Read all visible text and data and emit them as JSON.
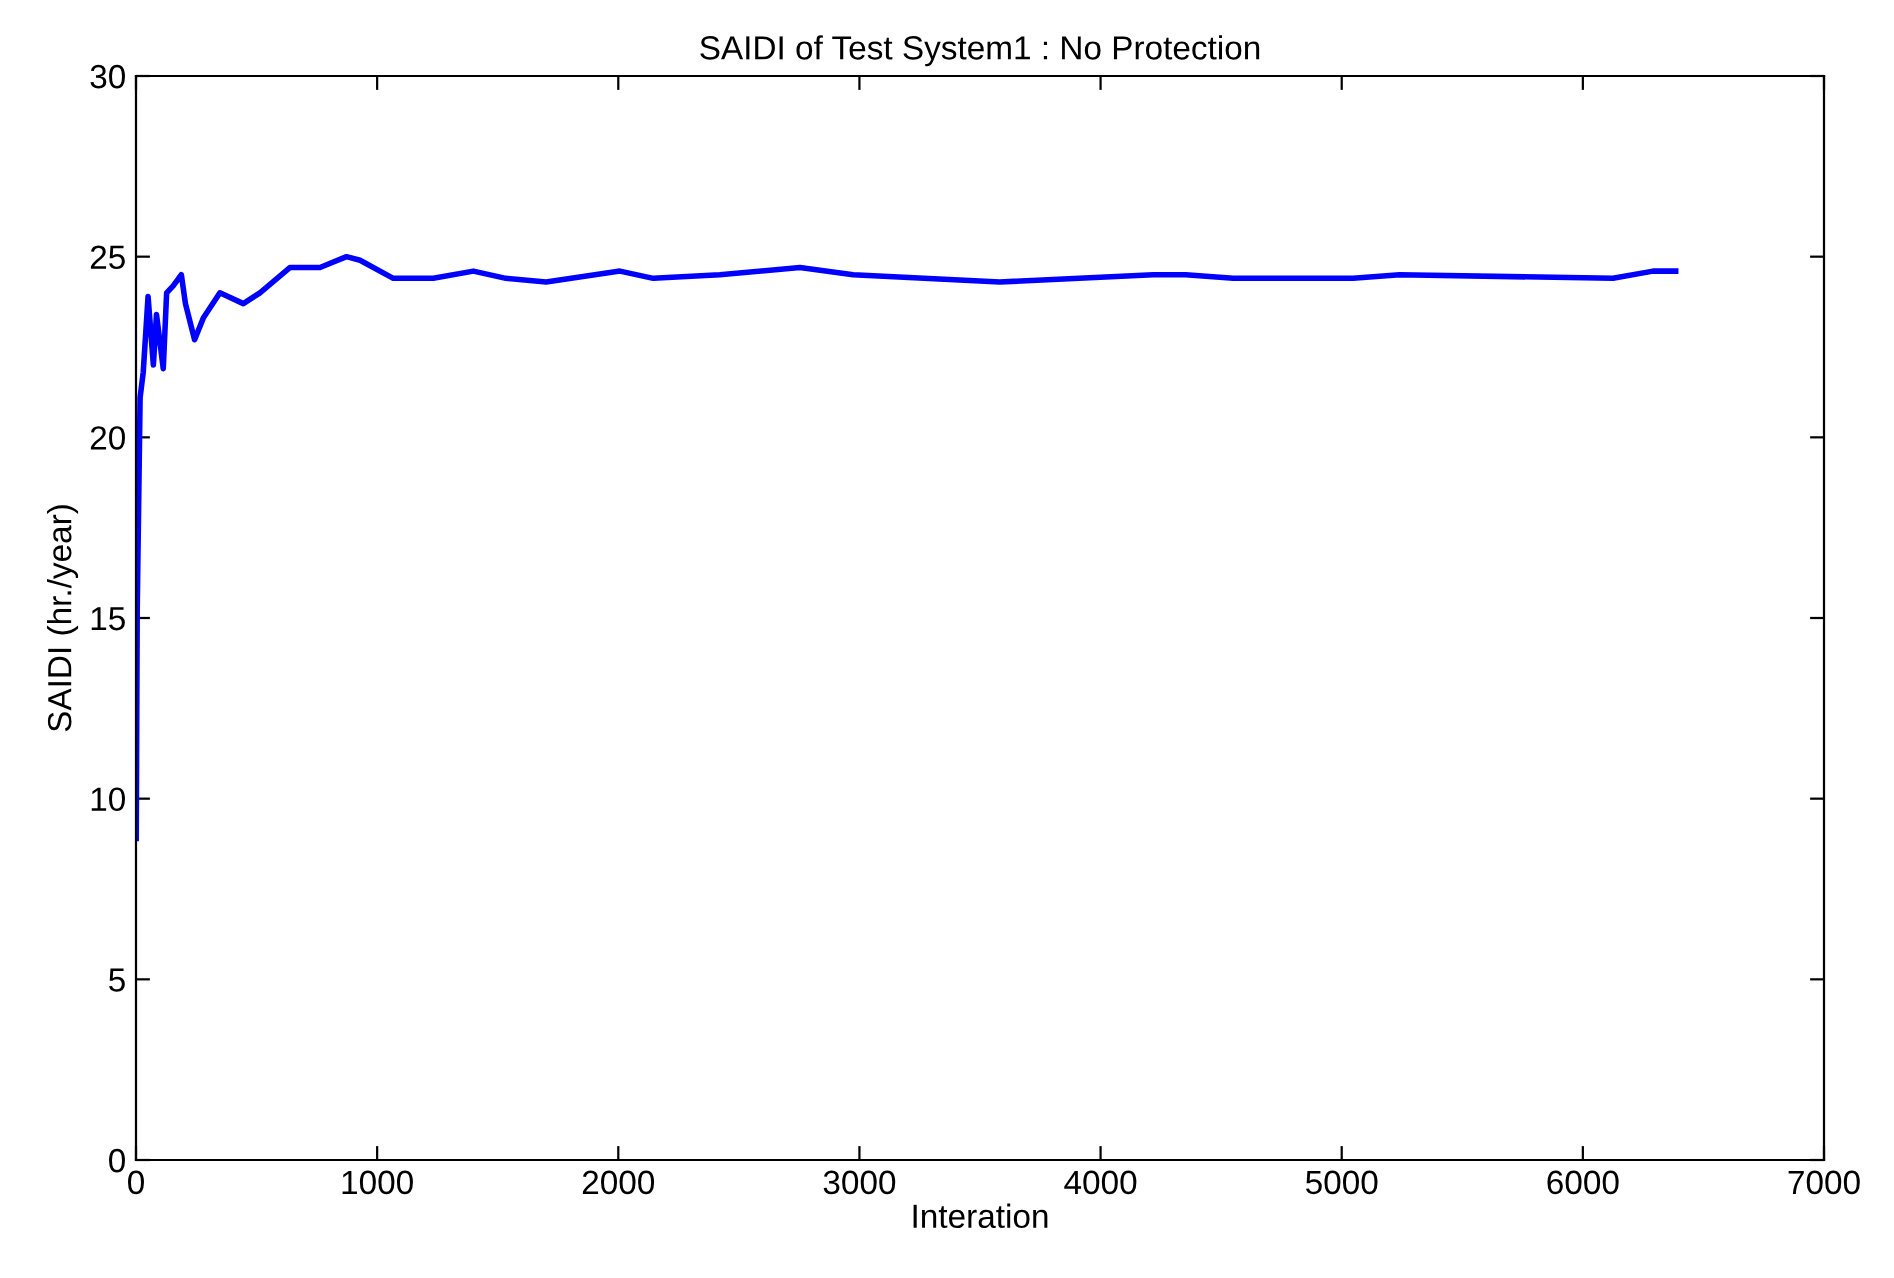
{
  "chart_data": {
    "type": "line",
    "title": "SAIDI of Test System1 : No Protection",
    "xlabel": "Interation",
    "ylabel": "SAIDI (hr./year)",
    "xlim": [
      0,
      7000
    ],
    "xticks": [
      0,
      1000,
      2000,
      3000,
      4000,
      5000,
      6000,
      7000
    ],
    "ylim": [
      0,
      30
    ],
    "yticks": [
      0,
      5,
      10,
      15,
      20,
      25,
      30
    ],
    "grid": false,
    "legend": false,
    "series": [
      {
        "color": "#0000ff",
        "x": [
          1,
          5,
          17,
          30,
          50,
          72,
          85,
          113,
          127,
          155,
          188,
          205,
          243,
          279,
          348,
          445,
          514,
          638,
          763,
          873,
          929,
          1067,
          1233,
          1399,
          1534,
          1701,
          2007,
          2145,
          2421,
          2753,
          2974,
          3582,
          4218,
          4353,
          4550,
          5047,
          5240,
          6125,
          6291,
          6385
        ],
        "values": [
          8.9,
          15.2,
          21.1,
          21.8,
          23.9,
          22.0,
          23.4,
          21.9,
          24.0,
          24.2,
          24.5,
          23.7,
          22.7,
          23.3,
          24.0,
          23.7,
          24.0,
          24.7,
          24.7,
          25.0,
          24.9,
          24.4,
          24.4,
          24.6,
          24.4,
          24.3,
          24.6,
          24.4,
          24.5,
          24.7,
          24.5,
          24.3,
          24.5,
          24.5,
          24.4,
          24.4,
          24.5,
          24.4,
          24.6,
          24.6
        ]
      }
    ]
  }
}
